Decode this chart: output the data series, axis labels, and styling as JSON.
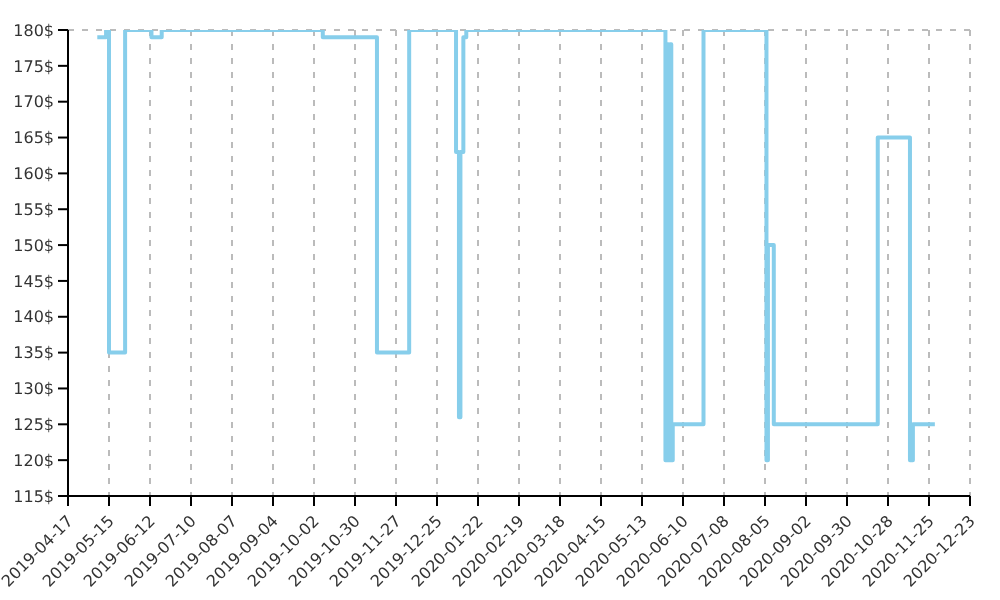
{
  "chart_data": {
    "type": "step",
    "x": [
      "2019-05-07",
      "2019-05-13",
      "2019-05-15",
      "2019-05-26",
      "2019-06-13",
      "2019-06-20",
      "2019-10-08",
      "2019-11-14",
      "2019-12-06",
      "2020-01-07",
      "2020-01-09",
      "2020-01-10",
      "2020-01-12",
      "2020-01-14",
      "2020-05-29",
      "2020-05-30",
      "2020-05-31",
      "2020-06-01",
      "2020-06-02",
      "2020-06-03",
      "2020-06-24",
      "2020-08-06",
      "2020-08-07",
      "2020-08-11",
      "2020-10-21",
      "2020-11-12",
      "2020-11-14",
      "2020-11-29"
    ],
    "series": [
      {
        "color": "#87ceeb",
        "values": [
          179,
          180,
          135,
          180,
          179,
          180,
          179,
          135,
          180,
          163,
          126,
          163,
          179,
          180,
          120,
          178,
          120,
          178,
          120,
          125,
          180,
          120,
          150,
          125,
          165,
          120,
          125,
          125
        ]
      }
    ],
    "xlim": [
      "2019-04-17",
      "2020-12-23"
    ],
    "xticks": [
      "2019-04-17",
      "2019-05-15",
      "2019-06-12",
      "2019-07-10",
      "2019-08-07",
      "2019-09-04",
      "2019-10-02",
      "2019-10-30",
      "2019-11-27",
      "2019-12-25",
      "2020-01-22",
      "2020-02-19",
      "2020-03-18",
      "2020-04-15",
      "2020-05-13",
      "2020-06-10",
      "2020-07-08",
      "2020-08-05",
      "2020-09-02",
      "2020-09-30",
      "2020-10-28",
      "2020-11-25",
      "2020-12-23"
    ],
    "ylim": [
      115,
      180
    ],
    "yticks": [
      {
        "value": 115,
        "label": "115$"
      },
      {
        "value": 120,
        "label": "120$"
      },
      {
        "value": 125,
        "label": "125$"
      },
      {
        "value": 130,
        "label": "130$"
      },
      {
        "value": 135,
        "label": "135$"
      },
      {
        "value": 140,
        "label": "140$"
      },
      {
        "value": 145,
        "label": "145$"
      },
      {
        "value": 150,
        "label": "150$"
      },
      {
        "value": 155,
        "label": "155$"
      },
      {
        "value": 160,
        "label": "160$"
      },
      {
        "value": 165,
        "label": "165$"
      },
      {
        "value": 170,
        "label": "170$"
      },
      {
        "value": 175,
        "label": "175$"
      },
      {
        "value": 180,
        "label": "180$"
      }
    ],
    "grid": true,
    "line_style": "solid",
    "marker": "none",
    "legend": false
  }
}
